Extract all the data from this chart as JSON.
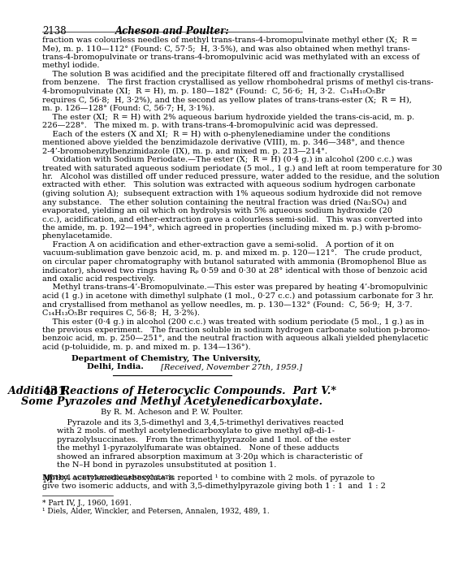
{
  "page_number": "2138",
  "header_italic": "Acheson and Poulter:",
  "background_color": "#ffffff",
  "text_color": "#000000",
  "font_size_body": 8.5,
  "font_size_header": 9.5,
  "font_size_section_number": 11,
  "font_size_footnote": 7.8,
  "top_section_text": [
    "fraction was colourless needles of methyl trans-trans-4-bromopulvinate methyl ether (X;  R =",
    "Me), m. p. 110—112° (Found: C, 57·5;  H, 3·5%), and was also obtained when methyl trans-",
    "trans-4-bromopulvinate or trans-trans-4-bromopulvinic acid was methylated with an excess of",
    "methyl iodide.",
    "    The solution B was acidified and the precipitate filtered off and fractionally crystallised",
    "from benzene.   The first fraction crystallised as yellow rhombohedral prisms of methyl cis-trans-",
    "4-bromopulvinate (XI;  R = H), m. p. 180—182° (Found:  C, 56·6;  H, 3·2.  C₁₄H₁₀O₅Br",
    "requires C, 56·8;  H, 3·2%), and the second as yellow plates of trans-trans-ester (X;  R = H),",
    "m. p. 126—128° (Found: C, 56·7; H, 3·1%).",
    "    The ester (XI;  R = H) with 2% aqueous barium hydroxide yielded the trans-cis-acid, m. p.",
    "226—228°.   The mixed m. p. with trans-trans-4-bromopulvinic acid was depressed.",
    "    Each of the esters (X and XI;  R = H) with o-phenylenediamine under the conditions",
    "mentioned above yielded the benzimidazole derivative (VIII), m. p. 346—348°, and thence",
    "2-4’-bromobenzylbenzimidazole (IX), m. p. and mixed m. p. 213—214°.",
    "    Oxidation with Sodium Periodate.—The ester (X;  R = H) (0·4 g.) in alcohol (200 c.c.) was",
    "treated with saturated aqueous sodium periodate (5 mol., 1 g.) and left at room temperature for 30",
    "hr.   Alcohol was distilled off under reduced pressure, water added to the residue, and the solution",
    "extracted with ether.   This solution was extracted with aqueous sodium hydrogen carbonate",
    "(giving solution A);  subsequent extraction with 1% aqueous sodium hydroxide did not remove",
    "any substance.   The ether solution containing the neutral fraction was dried (Na₂SO₄) and",
    "evaporated, yielding an oil which on hydrolysis with 5% aqueous sodium hydroxide (20",
    "c.c.), acidification, and ether-extraction gave a colourless semi-solid.   This was converted into",
    "the amide, m. p. 192—194°, which agreed in properties (including mixed m. p.) with p-bromo-",
    "phenylacetamide.",
    "    Fraction A on acidification and ether-extraction gave a semi-solid.   A portion of it on",
    "vacuum-sublimation gave benzoic acid, m. p. and mixed m. p. 120—121°.   The crude product,",
    "on circular paper chromatography with butanol saturated with ammonia (Bromophenol Blue as",
    "indicator), showed two rings having Rₚ 0·59 and 0·30 at 28° identical with those of benzoic acid",
    "and oxalic acid respectively.",
    "    Methyl trans-trans-4’-Bromopulvinate.—This ester was prepared by heating 4’-bromopulvinic",
    "acid (1 g.) in acetone with dimethyl sulphate (1 mol., 0·27 c.c.) and potassium carbonate for 3 hr.",
    "and crystallised from methanol as yellow needles, m. p. 130—132° (Found:  C, 56·9;  H, 3·7.",
    "C₁₄H₁₃O₅Br requires C, 56·8;  H, 3·2%).",
    "    This ester (0·4 g.) in alcohol (200 c.c.) was treated with sodium periodate (5 mol., 1 g.) as in",
    "the previous experiment.   The fraction soluble in sodium hydrogen carbonate solution p-bromo-",
    "benzoic acid, m. p. 250—251°, and the neutral fraction with aqueous alkali yielded phenylacetic",
    "acid (p-toluidide, m. p. and mixed m. p. 134—136°)."
  ],
  "department_line1": "Department of Chemistry, The University,",
  "department_line2": "Delhi, India.",
  "received_text": "[Received, November 27th, 1959.]",
  "article_number": "431.",
  "article_title_line1": "Addition Reactions of Heterocyclic Compounds.  Part V.*",
  "article_title_line2": "Some Pyrazoles and Methyl Acetylenedicarboxylate.",
  "byline": "By R. M. Acheson and P. W. Poulter.",
  "abstract": [
    "    Pyrazole and its 3,5-dimethyl and 3,4,5-trimethyl derivatives reacted",
    "with 2 mols. of methyl acetylenedicarboxylate to give methyl αβ-di-1-",
    "pyrazolylsuccinates.   From the trimethylpyrazole and 1 mol. of the ester",
    "the methyl 1-pyrazolylfumarate was obtained.   None of these adducts",
    "showed an infrared absorption maximum at 3·20μ which is characteristic of",
    "the N–H bond in pyrazoles unsubstituted at position 1."
  ],
  "body_start": [
    "Methyl acetylenedicarboxylate is reported ¹ to combine with 2 mols. of pyrazole to",
    "give two isomeric adducts, and with 3,5-dimethylpyrazole giving both 1 : 1  and  1 : 2"
  ],
  "footnotes": [
    "* Part IV, J., 1960, 1691.",
    "¹ Diels, Alder, Winckler, and Petersen, Annalen, 1932, 489, 1."
  ]
}
